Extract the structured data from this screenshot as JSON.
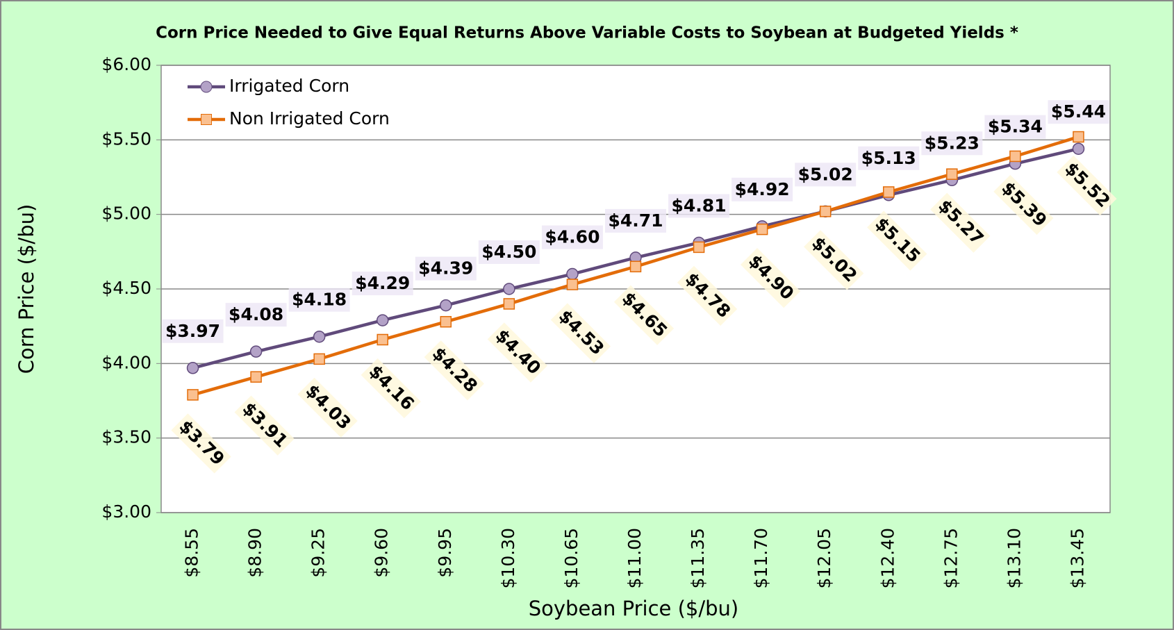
{
  "chart_data": {
    "type": "line",
    "title": "Corn Price Needed to Give Equal Returns Above Variable Costs to Soybean at Budgeted Yields *",
    "x_label": "Soybean Price ($/bu)",
    "y_label": "Corn Price ($/bu)",
    "categories": [
      "$8.55",
      "$8.90",
      "$9.25",
      "$9.60",
      "$9.95",
      "$10.30",
      "$10.65",
      "$11.00",
      "$11.35",
      "$11.70",
      "$12.05",
      "$12.40",
      "$12.75",
      "$13.10",
      "$13.45"
    ],
    "series": [
      {
        "name": "Irrigated Corn",
        "color": "#604a7b",
        "marker_color": "#b3a2c7",
        "values": [
          3.97,
          4.08,
          4.18,
          4.29,
          4.39,
          4.5,
          4.6,
          4.71,
          4.81,
          4.92,
          5.02,
          5.13,
          5.23,
          5.34,
          5.44
        ],
        "value_labels": [
          "$3.97",
          "$4.08",
          "$4.18",
          "$4.29",
          "$4.39",
          "$4.50",
          "$4.60",
          "$4.71",
          "$4.81",
          "$4.92",
          "$5.02",
          "$5.13",
          "$5.23",
          "$5.34",
          "$5.44"
        ]
      },
      {
        "name": "Non Irrigated Corn",
        "color": "#e36c09",
        "marker_color": "#fac090",
        "values": [
          3.79,
          3.91,
          4.03,
          4.16,
          4.28,
          4.4,
          4.53,
          4.65,
          4.78,
          4.9,
          5.02,
          5.15,
          5.27,
          5.39,
          5.52
        ],
        "value_labels": [
          "$3.79",
          "$3.91",
          "$4.03",
          "$4.16",
          "$4.28",
          "$4.40",
          "$4.53",
          "$4.65",
          "$4.78",
          "$4.90",
          "$5.02",
          "$5.15",
          "$5.27",
          "$5.39",
          "$5.52"
        ]
      }
    ],
    "ylim": [
      3,
      6
    ],
    "yticks": [
      {
        "value": 3,
        "label": "$3.00"
      },
      {
        "value": 3.5,
        "label": "$3.50"
      },
      {
        "value": 4,
        "label": "$4.00"
      },
      {
        "value": 4.5,
        "label": "$4.50"
      },
      {
        "value": 5,
        "label": "$5.00"
      },
      {
        "value": 5.5,
        "label": "$5.50"
      },
      {
        "value": 6,
        "label": "$6.00"
      }
    ],
    "grid": true,
    "legend": "upper left"
  }
}
